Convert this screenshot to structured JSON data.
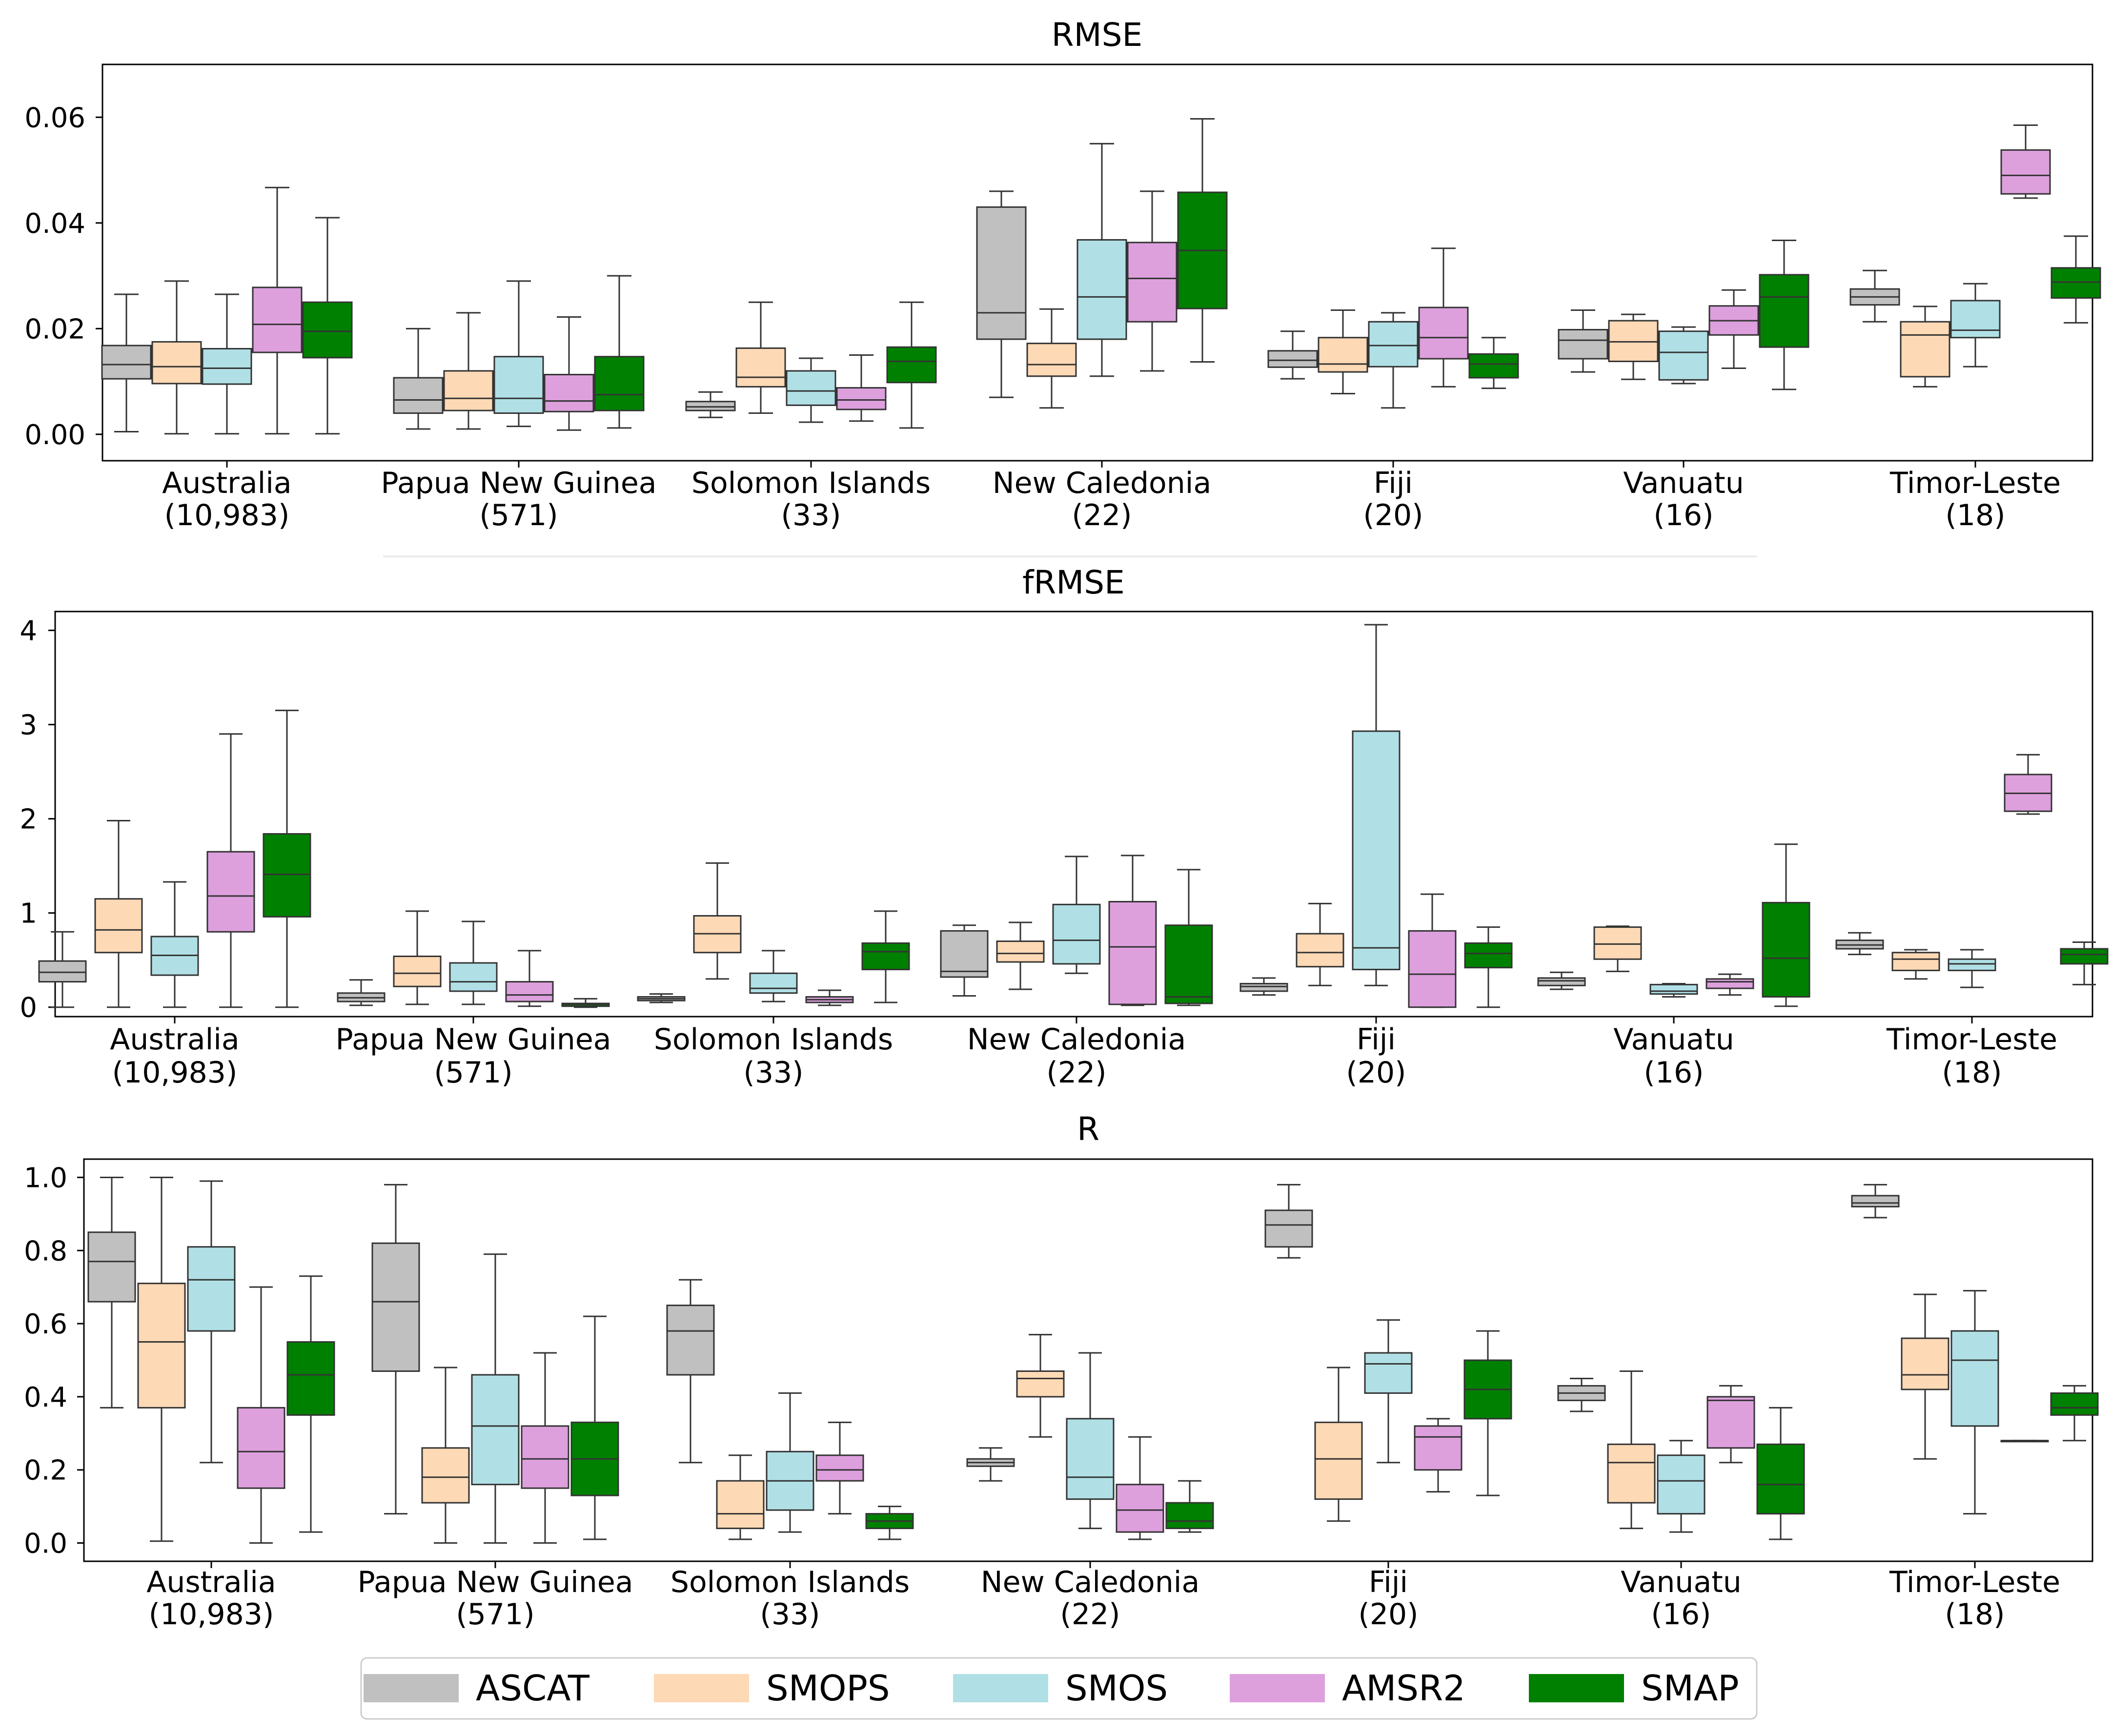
{
  "figure": {
    "countries": [
      {
        "name": "Australia",
        "count": "(10,983)"
      },
      {
        "name": "Papua New Guinea",
        "count": "(571)"
      },
      {
        "name": "Solomon Islands",
        "count": "(33)"
      },
      {
        "name": "New Caledonia",
        "count": "(22)"
      },
      {
        "name": "Fiji",
        "count": "(20)"
      },
      {
        "name": "Vanuatu",
        "count": "(16)"
      },
      {
        "name": "Timor-Leste",
        "count": "(18)"
      }
    ],
    "legend": [
      {
        "name": "ASCAT",
        "color": "#c0c0c0"
      },
      {
        "name": "SMOPS",
        "color": "#fdd9b5"
      },
      {
        "name": "SMOS",
        "color": "#b0e0e6"
      },
      {
        "name": "AMSR2",
        "color": "#dda0dd"
      },
      {
        "name": "SMAP",
        "color": "#008000"
      }
    ]
  },
  "chart_data": [
    {
      "type": "box",
      "title": "RMSE",
      "ylim": [
        -0.005,
        0.07
      ],
      "yticks": [
        "0.00",
        "0.02",
        "0.04",
        "0.06"
      ],
      "ytick_values": [
        0,
        0.02,
        0.04,
        0.06
      ],
      "series_order": [
        "ASCAT",
        "SMOPS",
        "SMOS",
        "AMSR2",
        "SMAP"
      ],
      "boxes": [
        [
          [
            0.0005,
            0.0105,
            0.0132,
            0.0168,
            0.0265
          ],
          [
            0.0001,
            0.0096,
            0.0128,
            0.0175,
            0.029
          ],
          [
            0.0001,
            0.0095,
            0.0125,
            0.0162,
            0.0265
          ],
          [
            0.0001,
            0.0155,
            0.0208,
            0.0278,
            0.0467
          ],
          [
            0.0001,
            0.0145,
            0.0195,
            0.025,
            0.041
          ]
        ],
        [
          [
            0.001,
            0.004,
            0.0065,
            0.0107,
            0.02
          ],
          [
            0.001,
            0.0045,
            0.0068,
            0.012,
            0.023
          ],
          [
            0.0015,
            0.004,
            0.0068,
            0.0147,
            0.029
          ],
          [
            0.0008,
            0.0043,
            0.0063,
            0.0113,
            0.0222
          ],
          [
            0.0012,
            0.0045,
            0.0075,
            0.0147,
            0.03
          ]
        ],
        [
          [
            0.0032,
            0.0045,
            0.0052,
            0.0062,
            0.008
          ],
          [
            0.004,
            0.009,
            0.0108,
            0.0163,
            0.025
          ],
          [
            0.0023,
            0.0055,
            0.0082,
            0.012,
            0.0144
          ],
          [
            0.0025,
            0.0047,
            0.0065,
            0.0088,
            0.015
          ],
          [
            0.0012,
            0.0098,
            0.0138,
            0.0165,
            0.025
          ]
        ],
        [
          [
            0.007,
            0.018,
            0.023,
            0.043,
            0.046
          ],
          [
            0.005,
            0.011,
            0.0132,
            0.0172,
            0.0237
          ],
          [
            0.011,
            0.018,
            0.026,
            0.0368,
            0.055
          ],
          [
            0.012,
            0.0213,
            0.0295,
            0.0363,
            0.046
          ],
          [
            0.0137,
            0.0238,
            0.0348,
            0.0458,
            0.0597
          ]
        ],
        [
          [
            0.0105,
            0.0127,
            0.014,
            0.0158,
            0.0195
          ],
          [
            0.0077,
            0.0118,
            0.0133,
            0.0183,
            0.0235
          ],
          [
            0.005,
            0.0128,
            0.0168,
            0.0213,
            0.023
          ],
          [
            0.009,
            0.0143,
            0.0183,
            0.024,
            0.0352
          ],
          [
            0.0087,
            0.0107,
            0.0133,
            0.0152,
            0.0183
          ]
        ],
        [
          [
            0.0118,
            0.0143,
            0.0178,
            0.0198,
            0.0235
          ],
          [
            0.0104,
            0.0138,
            0.0175,
            0.0215,
            0.0227
          ],
          [
            0.0096,
            0.0103,
            0.0155,
            0.0195,
            0.0203
          ],
          [
            0.0125,
            0.0188,
            0.0215,
            0.0243,
            0.0273
          ],
          [
            0.0085,
            0.0165,
            0.026,
            0.0302,
            0.0367
          ]
        ],
        [
          [
            0.0213,
            0.0245,
            0.026,
            0.0275,
            0.031
          ],
          [
            0.009,
            0.0109,
            0.0188,
            0.0213,
            0.0242
          ],
          [
            0.0128,
            0.0183,
            0.0197,
            0.0253,
            0.0285
          ],
          [
            0.0447,
            0.0455,
            0.049,
            0.0538,
            0.0585
          ],
          [
            0.0211,
            0.0258,
            0.0288,
            0.0315,
            0.0375
          ]
        ]
      ]
    },
    {
      "type": "box",
      "title": "fRMSE",
      "ylim": [
        -0.1,
        4.2
      ],
      "yticks": [
        "0",
        "1",
        "2",
        "3",
        "4"
      ],
      "ytick_values": [
        0,
        1,
        2,
        3,
        4
      ],
      "series_order": [
        "ASCAT",
        "SMOPS",
        "SMOS",
        "AMSR2",
        "SMAP"
      ],
      "boxes": [
        [
          [
            0.0,
            0.27,
            0.37,
            0.49,
            0.8
          ],
          [
            0.0,
            0.58,
            0.82,
            1.15,
            1.98
          ],
          [
            0.0,
            0.34,
            0.55,
            0.75,
            1.33
          ],
          [
            0.0,
            0.8,
            1.18,
            1.65,
            2.9
          ],
          [
            0.0,
            0.96,
            1.41,
            1.84,
            3.15
          ]
        ],
        [
          [
            0.02,
            0.06,
            0.1,
            0.15,
            0.29
          ],
          [
            0.03,
            0.22,
            0.36,
            0.54,
            1.02
          ],
          [
            0.03,
            0.17,
            0.27,
            0.47,
            0.91
          ],
          [
            0.01,
            0.06,
            0.13,
            0.27,
            0.6
          ],
          [
            0.0,
            0.01,
            0.03,
            0.04,
            0.09
          ]
        ],
        [
          [
            0.05,
            0.07,
            0.09,
            0.11,
            0.14
          ],
          [
            0.3,
            0.58,
            0.78,
            0.97,
            1.53
          ],
          [
            0.06,
            0.15,
            0.2,
            0.36,
            0.6
          ],
          [
            0.02,
            0.05,
            0.08,
            0.11,
            0.18
          ],
          [
            0.05,
            0.4,
            0.59,
            0.68,
            1.02
          ]
        ],
        [
          [
            0.12,
            0.32,
            0.38,
            0.81,
            0.87
          ],
          [
            0.19,
            0.48,
            0.57,
            0.7,
            0.9
          ],
          [
            0.36,
            0.46,
            0.71,
            1.09,
            1.6
          ],
          [
            0.02,
            0.03,
            0.64,
            1.12,
            1.61
          ],
          [
            0.02,
            0.04,
            0.11,
            0.87,
            1.46
          ]
        ],
        [
          [
            0.13,
            0.17,
            0.22,
            0.25,
            0.31
          ],
          [
            0.23,
            0.43,
            0.58,
            0.78,
            1.1
          ],
          [
            0.23,
            0.4,
            0.63,
            2.93,
            4.06
          ],
          [
            0.0,
            0.0,
            0.35,
            0.81,
            1.2
          ],
          [
            0.0,
            0.42,
            0.57,
            0.68,
            0.85
          ]
        ],
        [
          [
            0.19,
            0.23,
            0.28,
            0.31,
            0.37
          ],
          [
            0.38,
            0.51,
            0.67,
            0.85,
            0.86
          ],
          [
            0.11,
            0.14,
            0.17,
            0.24,
            0.25
          ],
          [
            0.13,
            0.2,
            0.27,
            0.3,
            0.35
          ],
          [
            0.01,
            0.11,
            0.52,
            1.11,
            1.73
          ]
        ],
        [
          [
            0.56,
            0.62,
            0.66,
            0.71,
            0.79
          ],
          [
            0.3,
            0.39,
            0.51,
            0.58,
            0.61
          ],
          [
            0.21,
            0.39,
            0.46,
            0.51,
            0.61
          ],
          [
            2.05,
            2.08,
            2.27,
            2.47,
            2.68
          ],
          [
            0.24,
            0.46,
            0.56,
            0.62,
            0.69
          ]
        ]
      ]
    },
    {
      "type": "box",
      "title": "R",
      "ylim": [
        -0.05,
        1.05
      ],
      "yticks": [
        "0.0",
        "0.2",
        "0.4",
        "0.6",
        "0.8",
        "1.0"
      ],
      "ytick_values": [
        0,
        0.2,
        0.4,
        0.6,
        0.8,
        1.0
      ],
      "series_order": [
        "ASCAT",
        "SMOPS",
        "SMOS",
        "AMSR2",
        "SMAP"
      ],
      "boxes": [
        [
          [
            0.37,
            0.66,
            0.77,
            0.85,
            1.0
          ],
          [
            0.005,
            0.37,
            0.55,
            0.71,
            1.0
          ],
          [
            0.22,
            0.58,
            0.72,
            0.81,
            0.99
          ],
          [
            0.0,
            0.15,
            0.25,
            0.37,
            0.7
          ],
          [
            0.03,
            0.35,
            0.46,
            0.55,
            0.73
          ]
        ],
        [
          [
            0.08,
            0.47,
            0.66,
            0.82,
            0.98
          ],
          [
            0.0,
            0.11,
            0.18,
            0.26,
            0.48
          ],
          [
            0.0,
            0.16,
            0.32,
            0.46,
            0.79
          ],
          [
            0.0,
            0.15,
            0.23,
            0.32,
            0.52
          ],
          [
            0.01,
            0.13,
            0.23,
            0.33,
            0.62
          ]
        ],
        [
          [
            0.22,
            0.46,
            0.58,
            0.65,
            0.72
          ],
          [
            0.01,
            0.04,
            0.08,
            0.17,
            0.24
          ],
          [
            0.03,
            0.09,
            0.17,
            0.25,
            0.41
          ],
          [
            0.08,
            0.17,
            0.2,
            0.24,
            0.33
          ],
          [
            0.01,
            0.04,
            0.06,
            0.08,
            0.1
          ]
        ],
        [
          [
            0.17,
            0.21,
            0.22,
            0.23,
            0.26
          ],
          [
            0.29,
            0.4,
            0.45,
            0.47,
            0.57
          ],
          [
            0.04,
            0.12,
            0.18,
            0.34,
            0.52
          ],
          [
            0.01,
            0.03,
            0.09,
            0.16,
            0.29
          ],
          [
            0.03,
            0.04,
            0.06,
            0.11,
            0.17
          ]
        ],
        [
          [
            0.78,
            0.81,
            0.87,
            0.91,
            0.98
          ],
          [
            0.06,
            0.12,
            0.23,
            0.33,
            0.48
          ],
          [
            0.22,
            0.41,
            0.49,
            0.52,
            0.61
          ],
          [
            0.14,
            0.2,
            0.29,
            0.32,
            0.34
          ],
          [
            0.13,
            0.34,
            0.42,
            0.5,
            0.58
          ]
        ],
        [
          [
            0.36,
            0.39,
            0.41,
            0.43,
            0.45
          ],
          [
            0.04,
            0.11,
            0.22,
            0.27,
            0.47
          ],
          [
            0.03,
            0.08,
            0.17,
            0.24,
            0.28
          ],
          [
            0.22,
            0.26,
            0.39,
            0.4,
            0.43
          ],
          [
            0.01,
            0.08,
            0.16,
            0.27,
            0.37
          ]
        ],
        [
          [
            0.89,
            0.92,
            0.93,
            0.95,
            0.98
          ],
          [
            0.23,
            0.42,
            0.46,
            0.56,
            0.68
          ],
          [
            0.08,
            0.32,
            0.5,
            0.58,
            0.69
          ],
          [
            0.28,
            0.28,
            0.28,
            0.28,
            0.28
          ],
          [
            0.28,
            0.35,
            0.37,
            0.41,
            0.43
          ]
        ]
      ]
    }
  ]
}
